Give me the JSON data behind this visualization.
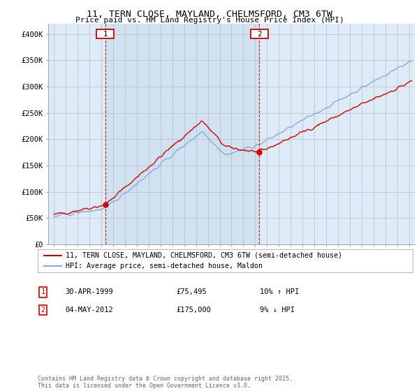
{
  "title": "11, TERN CLOSE, MAYLAND, CHELMSFORD, CM3 6TW",
  "subtitle": "Price paid vs. HM Land Registry's House Price Index (HPI)",
  "legend_line1": "11, TERN CLOSE, MAYLAND, CHELMSFORD, CM3 6TW (semi-detached house)",
  "legend_line2": "HPI: Average price, semi-detached house, Maldon",
  "marker1_date": "30-APR-1999",
  "marker1_price": "£75,495",
  "marker1_hpi": "10% ↑ HPI",
  "marker1_year": 1999.33,
  "marker1_value": 75495,
  "marker2_date": "04-MAY-2012",
  "marker2_price": "£175,000",
  "marker2_hpi": "9% ↓ HPI",
  "marker2_year": 2012.35,
  "marker2_value": 175000,
  "ylabel_ticks": [
    "£0",
    "£50K",
    "£100K",
    "£150K",
    "£200K",
    "£250K",
    "£300K",
    "£350K",
    "£400K"
  ],
  "ytick_values": [
    0,
    50000,
    100000,
    150000,
    200000,
    250000,
    300000,
    350000,
    400000
  ],
  "ylim": [
    0,
    420000
  ],
  "xlim_start": 1994.5,
  "xlim_end": 2025.5,
  "footer": "Contains HM Land Registry data © Crown copyright and database right 2025.\nThis data is licensed under the Open Government Licence v3.0.",
  "bg_color": "#ddeaf7",
  "shade_color": "#c8dcf0",
  "line_color_red": "#cc0000",
  "line_color_blue": "#88aadd",
  "marker_box_color": "#cc0000",
  "grid_color": "#bbbbbb"
}
